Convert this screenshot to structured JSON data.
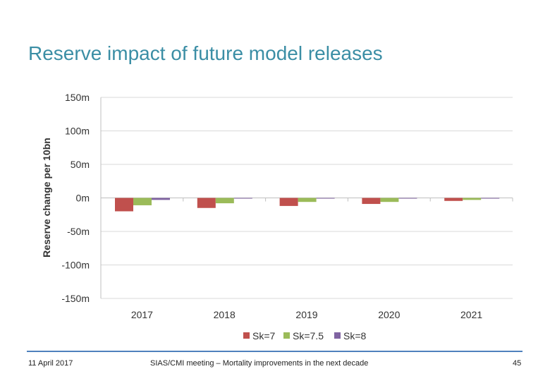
{
  "slide": {
    "title": "Reserve impact of future model releases",
    "date": "11 April 2017",
    "footer": "SIAS/CMI meeting – Mortality improvements in the next decade",
    "page": "45"
  },
  "chart_data": {
    "type": "bar",
    "title": "",
    "xlabel": "",
    "ylabel": "Reserve change per 10bn",
    "ylim": [
      -150,
      150
    ],
    "yticks": [
      150,
      100,
      50,
      0,
      -50,
      -100,
      -150
    ],
    "ytick_labels": [
      "150m",
      "100m",
      "50m",
      "0m",
      "-50m",
      "-100m",
      "-150m"
    ],
    "grid": true,
    "legend": "bottom",
    "categories": [
      "2017",
      "2018",
      "2019",
      "2020",
      "2021"
    ],
    "series": [
      {
        "name": "Sk=7",
        "color": "#C0504D",
        "values": [
          -20,
          -15,
          -12,
          -9,
          -4.5
        ]
      },
      {
        "name": "Sk=7.5",
        "color": "#9BBB59",
        "values": [
          -11,
          -8,
          -6,
          -6,
          -3
        ]
      },
      {
        "name": "Sk=8",
        "color": "#8064A2",
        "values": [
          -3,
          -1,
          -0.5,
          -0.5,
          -0.5
        ]
      }
    ]
  }
}
